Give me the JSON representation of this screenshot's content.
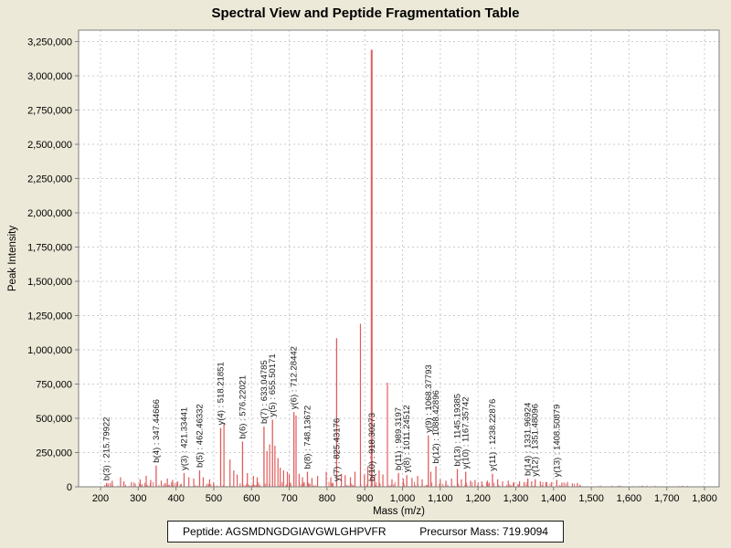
{
  "window": {
    "title": "Spectral View and Peptide Fragmentation Table"
  },
  "footer": {
    "peptide_label": "Peptide:",
    "peptide_sequence": "AGSMDNGDGIAVGWLGHPVFR",
    "precursor_label": "Precursor Mass:",
    "precursor_value": "719.9094"
  },
  "chart_data": {
    "type": "bar",
    "subtype": "mass-spectrum-stick-plot",
    "title": "Spectral View and Peptide Fragmentation Table",
    "xlabel": "Mass (m/z)",
    "ylabel": "Peak Intensity",
    "xlim": [
      141.9,
      1838.6
    ],
    "ylim": [
      0,
      3333333
    ],
    "x_ticks": [
      200,
      300,
      400,
      500,
      600,
      700,
      800,
      900,
      1000,
      1100,
      1200,
      1300,
      1400,
      1500,
      1600,
      1700,
      1800
    ],
    "y_ticks": [
      0,
      250000,
      500000,
      750000,
      1000000,
      1250000,
      1500000,
      1750000,
      2000000,
      2250000,
      2500000,
      2750000,
      3000000,
      3250000
    ],
    "grid": true,
    "legend": "none",
    "colors": {
      "background": "#ece9d8",
      "plot_background": "#ffffff",
      "plot_border": "#7f7f7f",
      "gridline": "#cccccc",
      "peak": "#e05c5c",
      "label_text": "#1a1a1a",
      "tick_text": "#000000"
    },
    "labeled_peaks": [
      {
        "ion": "b(3)",
        "mz": 215.79922,
        "intensity": 25000,
        "label": "b(3) : 215.79922"
      },
      {
        "ion": "b(4)",
        "mz": 347.44666,
        "intensity": 155000,
        "label": "b(4) : 347.44666"
      },
      {
        "ion": "y(3)",
        "mz": 421.33441,
        "intensity": 100000,
        "label": "y(3) : 421.33441"
      },
      {
        "ion": "b(5)",
        "mz": 462.46332,
        "intensity": 120000,
        "label": "b(5) : 462.46332"
      },
      {
        "ion": "y(4)",
        "mz": 518.21851,
        "intensity": 430000,
        "label": "y(4) : 518.21851"
      },
      {
        "ion": "b(6)",
        "mz": 576.22021,
        "intensity": 330000,
        "label": "b(6) : 576.22021"
      },
      {
        "ion": "b(7)",
        "mz": 633.04785,
        "intensity": 440000,
        "label": "b(7) : 633.04785"
      },
      {
        "ion": "y(5)",
        "mz": 655.50171,
        "intensity": 490000,
        "label": "y(5) : 655.50171"
      },
      {
        "ion": "y(6)",
        "mz": 712.28442,
        "intensity": 545000,
        "label": "y(6) : 712.28442"
      },
      {
        "ion": "b(8)",
        "mz": 748.13672,
        "intensity": 110000,
        "label": "b(8) : 748.13672"
      },
      {
        "ion": "y(7)",
        "mz": 825.43176,
        "intensity": 1085000,
        "label": "y(7) : 825.43176"
      },
      {
        "ion": "b(10)",
        "mz": 918.30273,
        "intensity": 3190000,
        "label": "b(10) : 918.30273"
      },
      {
        "ion": "b(11)",
        "mz": 989.3197,
        "intensity": 100000,
        "label": "b(11) : 989.3197"
      },
      {
        "ion": "y(8)",
        "mz": 1011.24512,
        "intensity": 85000,
        "label": "y(8) : 1011.24512"
      },
      {
        "ion": "y(9)",
        "mz": 1068.37793,
        "intensity": 375000,
        "label": "y(9) : 1068.37793"
      },
      {
        "ion": "b(12)",
        "mz": 1088.42896,
        "intensity": 150000,
        "label": "b(12) : 1088.42896"
      },
      {
        "ion": "b(13)",
        "mz": 1145.19385,
        "intensity": 130000,
        "label": "b(13) : 1145.19385"
      },
      {
        "ion": "y(10)",
        "mz": 1167.35742,
        "intensity": 110000,
        "label": "y(10) : 1167.35742"
      },
      {
        "ion": "y(11)",
        "mz": 1238.22876,
        "intensity": 95000,
        "label": "y(11) : 1238.22876"
      },
      {
        "ion": "b(14)",
        "mz": 1331.96924,
        "intensity": 60000,
        "label": "b(14) : 1331.96924"
      },
      {
        "ion": "y(12)",
        "mz": 1351.48096,
        "intensity": 55000,
        "label": "y(12) : 1351.48096"
      },
      {
        "ion": "y(13)",
        "mz": 1408.50879,
        "intensity": 50000,
        "label": "y(13) : 1408.50879"
      }
    ],
    "unlabeled_peaks": [
      [
        231,
        45000
      ],
      [
        253,
        70000
      ],
      [
        262,
        40000
      ],
      [
        282,
        35000
      ],
      [
        305,
        55000
      ],
      [
        321,
        80000
      ],
      [
        333,
        50000
      ],
      [
        361,
        45000
      ],
      [
        377,
        60000
      ],
      [
        391,
        50000
      ],
      [
        404,
        40000
      ],
      [
        434,
        70000
      ],
      [
        447,
        60000
      ],
      [
        472,
        70000
      ],
      [
        489,
        55000
      ],
      [
        527,
        465000
      ],
      [
        543,
        200000
      ],
      [
        553,
        120000
      ],
      [
        562,
        90000
      ],
      [
        589,
        100000
      ],
      [
        605,
        80000
      ],
      [
        615,
        70000
      ],
      [
        641,
        260000
      ],
      [
        648,
        310000
      ],
      [
        662,
        300000
      ],
      [
        670,
        210000
      ],
      [
        676,
        140000
      ],
      [
        685,
        120000
      ],
      [
        695,
        110000
      ],
      [
        700,
        90000
      ],
      [
        718,
        520000
      ],
      [
        726,
        95000
      ],
      [
        735,
        70000
      ],
      [
        760,
        65000
      ],
      [
        775,
        80000
      ],
      [
        798,
        110000
      ],
      [
        810,
        70000
      ],
      [
        838,
        95000
      ],
      [
        848,
        85000
      ],
      [
        862,
        70000
      ],
      [
        874,
        110000
      ],
      [
        888.5,
        1190000
      ],
      [
        899,
        90000
      ],
      [
        908,
        150000
      ],
      [
        926,
        80000
      ],
      [
        938,
        120000
      ],
      [
        948,
        90000
      ],
      [
        960,
        760000
      ],
      [
        972,
        55000
      ],
      [
        1002,
        60000
      ],
      [
        1025,
        65000
      ],
      [
        1040,
        80000
      ],
      [
        1052,
        55000
      ],
      [
        1075,
        110000
      ],
      [
        1100,
        55000
      ],
      [
        1115,
        45000
      ],
      [
        1130,
        60000
      ],
      [
        1156,
        55000
      ],
      [
        1180,
        45000
      ],
      [
        1192,
        50000
      ],
      [
        1210,
        40000
      ],
      [
        1225,
        45000
      ],
      [
        1252,
        55000
      ],
      [
        1265,
        40000
      ],
      [
        1280,
        45000
      ],
      [
        1295,
        35000
      ],
      [
        1310,
        40000
      ],
      [
        1322,
        35000
      ],
      [
        1342,
        40000
      ],
      [
        1365,
        40000
      ],
      [
        1380,
        35000
      ],
      [
        1395,
        35000
      ],
      [
        1422,
        30000
      ],
      [
        1437,
        35000
      ],
      [
        1450,
        25000
      ],
      [
        1463,
        28000
      ]
    ],
    "noise": {
      "comment": "decorative low-level baseline noise seen across the spectrum",
      "seed": 11,
      "main": {
        "count": 460,
        "mz_min": 205,
        "mz_max": 1475,
        "intensity_min": 2500,
        "intensity_max": 36000
      },
      "tail": {
        "count": 26,
        "mz_min": 1480,
        "mz_max": 1798,
        "intensity_min": 2000,
        "intensity_max": 10000
      }
    }
  }
}
